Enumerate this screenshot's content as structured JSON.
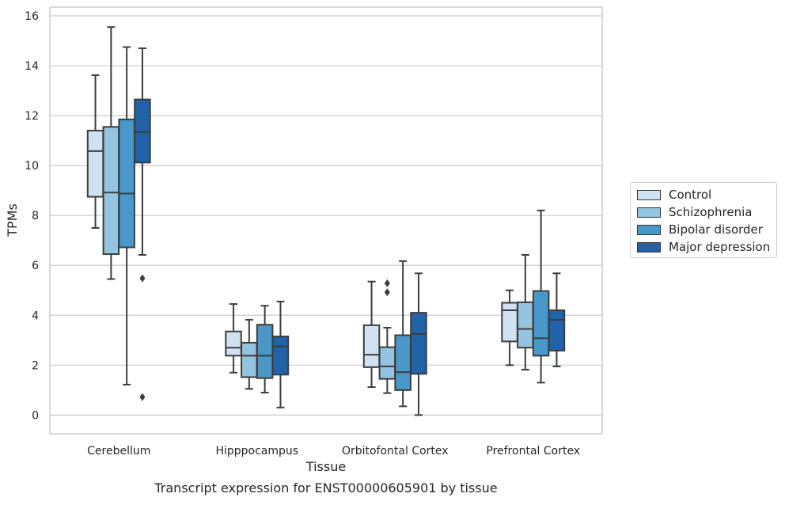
{
  "chart_data": {
    "type": "boxplot",
    "title": "Transcript expression for ENST00000605901 by tissue",
    "xlabel": "Tissue",
    "ylabel": "TPMs",
    "ylim": [
      -0.75,
      16.35
    ],
    "yticks": [
      0,
      2,
      4,
      6,
      8,
      10,
      12,
      14,
      16
    ],
    "grid": "horizontal",
    "legend_position": "right",
    "categories": [
      "Cerebellum",
      "Hipppocampus",
      "Orbitofontal Cortex",
      "Prefrontal Cortex"
    ],
    "series": [
      {
        "name": "Control",
        "color": "#d0e1f2",
        "boxes": [
          {
            "whislo": 7.5,
            "q1": 8.75,
            "med": 10.58,
            "q3": 11.4,
            "whishi": 13.62,
            "fliers": []
          },
          {
            "whislo": 1.7,
            "q1": 2.38,
            "med": 2.7,
            "q3": 3.35,
            "whishi": 4.45,
            "fliers": []
          },
          {
            "whislo": 1.12,
            "q1": 1.92,
            "med": 2.42,
            "q3": 3.6,
            "whishi": 5.35,
            "fliers": []
          },
          {
            "whislo": 2.0,
            "q1": 2.95,
            "med": 4.2,
            "q3": 4.5,
            "whishi": 5.0,
            "fliers": []
          }
        ]
      },
      {
        "name": "Schizophrenia",
        "color": "#94c4df",
        "boxes": [
          {
            "whislo": 5.45,
            "q1": 6.45,
            "med": 8.92,
            "q3": 11.55,
            "whishi": 15.55,
            "fliers": []
          },
          {
            "whislo": 1.05,
            "q1": 1.52,
            "med": 2.38,
            "q3": 2.9,
            "whishi": 3.82,
            "fliers": []
          },
          {
            "whislo": 0.88,
            "q1": 1.45,
            "med": 1.95,
            "q3": 2.72,
            "whishi": 3.5,
            "fliers": [
              4.92,
              5.28
            ]
          },
          {
            "whislo": 1.82,
            "q1": 2.7,
            "med": 3.45,
            "q3": 4.52,
            "whishi": 6.42,
            "fliers": []
          }
        ]
      },
      {
        "name": "Bipolar disorder",
        "color": "#4a98c9",
        "boxes": [
          {
            "whislo": 1.22,
            "q1": 6.72,
            "med": 8.88,
            "q3": 11.85,
            "whishi": 14.75,
            "fliers": []
          },
          {
            "whislo": 0.9,
            "q1": 1.48,
            "med": 2.38,
            "q3": 3.62,
            "whishi": 4.38,
            "fliers": []
          },
          {
            "whislo": 0.35,
            "q1": 1.0,
            "med": 1.72,
            "q3": 3.2,
            "whishi": 6.17,
            "fliers": []
          },
          {
            "whislo": 1.3,
            "q1": 2.38,
            "med": 3.08,
            "q3": 4.97,
            "whishi": 8.2,
            "fliers": []
          }
        ]
      },
      {
        "name": "Major depression",
        "color": "#2063a9",
        "boxes": [
          {
            "whislo": 6.42,
            "q1": 10.12,
            "med": 11.35,
            "q3": 12.65,
            "whishi": 14.7,
            "fliers": [
              5.48,
              0.72
            ]
          },
          {
            "whislo": 0.3,
            "q1": 1.62,
            "med": 2.75,
            "q3": 3.15,
            "whishi": 4.55,
            "fliers": []
          },
          {
            "whislo": 0.0,
            "q1": 1.65,
            "med": 3.25,
            "q3": 4.1,
            "whishi": 5.68,
            "fliers": []
          },
          {
            "whislo": 1.95,
            "q1": 2.58,
            "med": 3.82,
            "q3": 4.2,
            "whishi": 5.68,
            "fliers": []
          }
        ]
      }
    ]
  }
}
